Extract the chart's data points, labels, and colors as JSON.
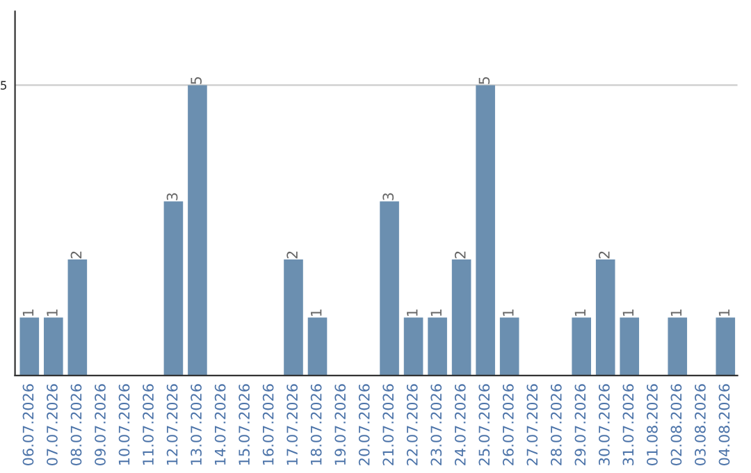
{
  "chart_data": {
    "type": "bar",
    "categories": [
      "06.07.2026",
      "07.07.2026",
      "08.07.2026",
      "09.07.2026",
      "10.07.2026",
      "11.07.2026",
      "12.07.2026",
      "13.07.2026",
      "14.07.2026",
      "15.07.2026",
      "16.07.2026",
      "17.07.2026",
      "18.07.2026",
      "19.07.2026",
      "20.07.2026",
      "21.07.2026",
      "22.07.2026",
      "23.07.2026",
      "24.07.2026",
      "25.07.2026",
      "26.07.2026",
      "27.07.2026",
      "28.07.2026",
      "29.07.2026",
      "30.07.2026",
      "31.07.2026",
      "01.08.2026",
      "02.08.2026",
      "03.08.2026",
      "04.08.2026"
    ],
    "values": [
      1,
      1,
      2,
      0,
      0,
      0,
      3,
      5,
      0,
      0,
      0,
      2,
      1,
      0,
      0,
      3,
      1,
      1,
      2,
      5,
      1,
      0,
      0,
      1,
      2,
      1,
      0,
      1,
      0,
      1
    ],
    "value_labels": [
      "1",
      "1",
      "2",
      null,
      null,
      null,
      "3",
      "5",
      null,
      null,
      null,
      "2",
      "1",
      null,
      null,
      "3",
      "1",
      "1",
      "2",
      "5",
      "1",
      null,
      null,
      "1",
      "2",
      "1",
      null,
      "1",
      null,
      "1"
    ],
    "color": "#6b8fb0",
    "ylim": [
      0,
      6.27
    ],
    "yticks": [
      5
    ],
    "grid": "y",
    "legend": false
  }
}
